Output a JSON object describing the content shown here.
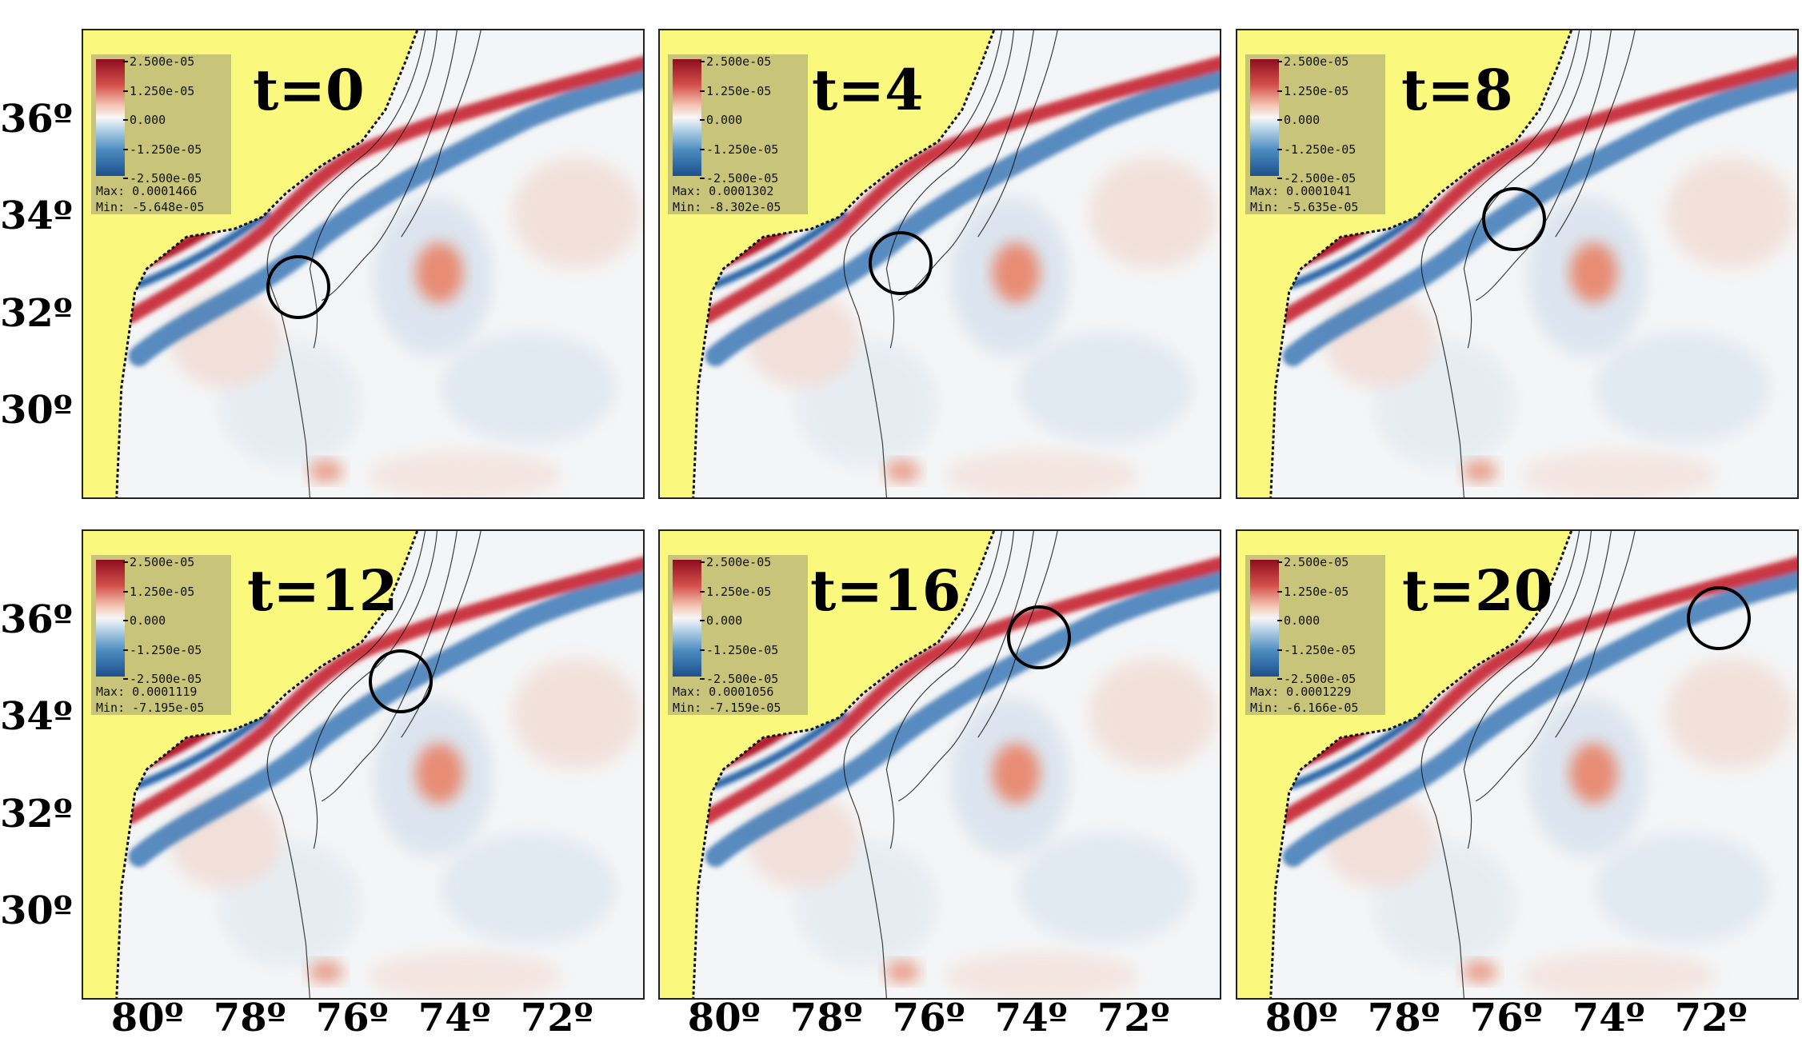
{
  "chart_data": [
    {
      "type": "heatmap",
      "panel_label": "t=0",
      "colorbar_ticks": [
        "2.500e-05",
        "1.250e-05",
        "0.000",
        "-1.250e-05",
        "-2.500e-05"
      ],
      "max": "Max:  0.0001466",
      "min": "Min: -5.648e-05",
      "circle_lonlat": [
        -77.0,
        32.6
      ]
    },
    {
      "type": "heatmap",
      "panel_label": "t=4",
      "colorbar_ticks": [
        "2.500e-05",
        "1.250e-05",
        "0.000",
        "-1.250e-05",
        "-2.500e-05"
      ],
      "max": "Max:  0.0001302",
      "min": "Min: -8.302e-05",
      "circle_lonlat": [
        -76.5,
        33.1
      ]
    },
    {
      "type": "heatmap",
      "panel_label": "t=8",
      "colorbar_ticks": [
        "2.500e-05",
        "1.250e-05",
        "0.000",
        "-1.250e-05",
        "-2.500e-05"
      ],
      "max": "Max:  0.0001041",
      "min": "Min: -5.635e-05",
      "circle_lonlat": [
        -75.8,
        34.0
      ]
    },
    {
      "type": "heatmap",
      "panel_label": "t=12",
      "colorbar_ticks": [
        "2.500e-05",
        "1.250e-05",
        "0.000",
        "-1.250e-05",
        "-2.500e-05"
      ],
      "max": "Max:  0.0001119",
      "min": "Min: -7.195e-05",
      "circle_lonlat": [
        -75.0,
        34.8
      ]
    },
    {
      "type": "heatmap",
      "panel_label": "t=16",
      "colorbar_ticks": [
        "2.500e-05",
        "1.250e-05",
        "0.000",
        "-1.250e-05",
        "-2.500e-05"
      ],
      "max": "Max:  0.0001056",
      "min": "Min: -7.159e-05",
      "circle_lonlat": [
        -73.8,
        35.7
      ]
    },
    {
      "type": "heatmap",
      "panel_label": "t=20",
      "colorbar_ticks": [
        "2.500e-05",
        "1.250e-05",
        "0.000",
        "-1.250e-05",
        "-2.500e-05"
      ],
      "max": "Max:  0.0001229",
      "min": "Min: -6.166e-05",
      "circle_lonlat": [
        -71.8,
        36.1
      ]
    }
  ],
  "axes": {
    "y_ticks": [
      {
        "label": "36º",
        "value": 36
      },
      {
        "label": "34º",
        "value": 34
      },
      {
        "label": "32º",
        "value": 32
      },
      {
        "label": "30º",
        "value": 30
      }
    ],
    "x_ticks": [
      {
        "label": "80º",
        "value": -80
      },
      {
        "label": "78º",
        "value": -78
      },
      {
        "label": "76º",
        "value": -76
      },
      {
        "label": "74º",
        "value": -74
      },
      {
        "label": "72º",
        "value": -72
      }
    ],
    "lon_range": [
      -81.2,
      -70.2
    ],
    "lat_range": [
      28.2,
      37.9
    ]
  },
  "colors": {
    "land": "#fbf87e",
    "positive": "#c11b2c",
    "negative": "#2363a8",
    "neutral": "#f4f5f6",
    "legend_bg": "#c8c47a"
  }
}
